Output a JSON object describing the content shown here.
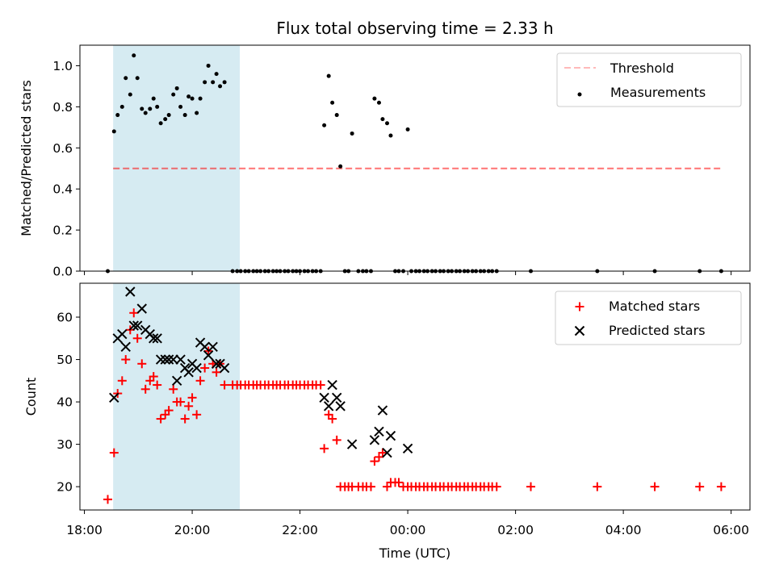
{
  "chart_data": [
    {
      "type": "scatter",
      "title": "Flux total observing time = 2.33 h",
      "xlabel": "",
      "ylabel": "Matched/Predicted stars",
      "ylim": [
        0.0,
        1.1
      ],
      "yticks": [
        "0.0",
        "0.2",
        "0.4",
        "0.6",
        "0.8",
        "1.0"
      ],
      "grid": false,
      "legend_position": "top-right",
      "shaded_time_range": [
        "18:32",
        "20:53"
      ],
      "threshold": {
        "name": "Threshold",
        "value": 0.5,
        "x_start": "18:32",
        "x_end": "05:51",
        "color": "#ff7f7f",
        "style": "dashed"
      },
      "series": [
        {
          "name": "Measurements",
          "color": "#000000",
          "marker": "dot",
          "points": [
            [
              "18:26",
              0.0
            ],
            [
              "18:33",
              0.68
            ],
            [
              "18:37",
              0.76
            ],
            [
              "18:42",
              0.8
            ],
            [
              "18:46",
              0.94
            ],
            [
              "18:51",
              0.86
            ],
            [
              "18:55",
              1.05
            ],
            [
              "18:59",
              0.94
            ],
            [
              "19:04",
              0.79
            ],
            [
              "19:08",
              0.77
            ],
            [
              "19:13",
              0.79
            ],
            [
              "19:17",
              0.84
            ],
            [
              "19:21",
              0.8
            ],
            [
              "19:25",
              0.72
            ],
            [
              "19:30",
              0.74
            ],
            [
              "19:34",
              0.76
            ],
            [
              "19:39",
              0.86
            ],
            [
              "19:43",
              0.89
            ],
            [
              "19:47",
              0.8
            ],
            [
              "19:52",
              0.76
            ],
            [
              "19:56",
              0.85
            ],
            [
              "20:00",
              0.84
            ],
            [
              "20:05",
              0.77
            ],
            [
              "20:09",
              0.84
            ],
            [
              "20:14",
              0.92
            ],
            [
              "20:18",
              1.0
            ],
            [
              "20:23",
              0.92
            ],
            [
              "20:27",
              0.96
            ],
            [
              "20:31",
              0.9
            ],
            [
              "20:36",
              0.92
            ],
            [
              "20:45",
              0.0
            ],
            [
              "20:50",
              0.0
            ],
            [
              "20:54",
              0.0
            ],
            [
              "20:59",
              0.0
            ],
            [
              "21:03",
              0.0
            ],
            [
              "21:08",
              0.0
            ],
            [
              "21:12",
              0.0
            ],
            [
              "21:16",
              0.0
            ],
            [
              "21:21",
              0.0
            ],
            [
              "21:25",
              0.0
            ],
            [
              "21:30",
              0.0
            ],
            [
              "21:34",
              0.0
            ],
            [
              "21:38",
              0.0
            ],
            [
              "21:43",
              0.0
            ],
            [
              "21:47",
              0.0
            ],
            [
              "21:52",
              0.0
            ],
            [
              "21:56",
              0.0
            ],
            [
              "22:00",
              0.0
            ],
            [
              "22:05",
              0.0
            ],
            [
              "22:09",
              0.0
            ],
            [
              "22:14",
              0.0
            ],
            [
              "22:18",
              0.0
            ],
            [
              "22:23",
              0.0
            ],
            [
              "22:27",
              0.71
            ],
            [
              "22:32",
              0.95
            ],
            [
              "22:36",
              0.82
            ],
            [
              "22:41",
              0.76
            ],
            [
              "22:45",
              0.51
            ],
            [
              "22:50",
              0.0
            ],
            [
              "22:54",
              0.0
            ],
            [
              "22:58",
              0.67
            ],
            [
              "23:05",
              0.0
            ],
            [
              "23:10",
              0.0
            ],
            [
              "23:14",
              0.0
            ],
            [
              "23:19",
              0.0
            ],
            [
              "23:23",
              0.84
            ],
            [
              "23:28",
              0.82
            ],
            [
              "23:32",
              0.74
            ],
            [
              "23:37",
              0.72
            ],
            [
              "23:41",
              0.66
            ],
            [
              "23:46",
              0.0
            ],
            [
              "23:50",
              0.0
            ],
            [
              "23:55",
              0.0
            ],
            [
              "00:00",
              0.69
            ],
            [
              "00:04",
              0.0
            ],
            [
              "00:09",
              0.0
            ],
            [
              "00:13",
              0.0
            ],
            [
              "00:18",
              0.0
            ],
            [
              "00:22",
              0.0
            ],
            [
              "00:27",
              0.0
            ],
            [
              "00:31",
              0.0
            ],
            [
              "00:36",
              0.0
            ],
            [
              "00:40",
              0.0
            ],
            [
              "00:45",
              0.0
            ],
            [
              "00:49",
              0.0
            ],
            [
              "00:54",
              0.0
            ],
            [
              "00:58",
              0.0
            ],
            [
              "01:03",
              0.0
            ],
            [
              "01:07",
              0.0
            ],
            [
              "01:12",
              0.0
            ],
            [
              "01:16",
              0.0
            ],
            [
              "01:21",
              0.0
            ],
            [
              "01:25",
              0.0
            ],
            [
              "01:30",
              0.0
            ],
            [
              "01:34",
              0.0
            ],
            [
              "01:39",
              0.0
            ],
            [
              "02:17",
              0.0
            ],
            [
              "03:31",
              0.0
            ],
            [
              "04:35",
              0.0
            ],
            [
              "05:25",
              0.0
            ],
            [
              "05:49",
              0.0
            ]
          ]
        }
      ]
    },
    {
      "type": "scatter",
      "title": "",
      "xlabel": "Time (UTC)",
      "ylabel": "Count",
      "ylim": [
        14.5,
        68
      ],
      "yticks": [
        "20",
        "30",
        "40",
        "50",
        "60"
      ],
      "xlim": [
        "17:55",
        "06:21"
      ],
      "xticks": [
        "18:00",
        "20:00",
        "22:00",
        "00:00",
        "02:00",
        "04:00",
        "06:00"
      ],
      "grid": false,
      "legend_position": "top-right",
      "shaded_time_range": [
        "18:32",
        "20:53"
      ],
      "series": [
        {
          "name": "Matched stars",
          "color": "#ff0000",
          "marker": "plus",
          "points": [
            [
              "18:26",
              17
            ],
            [
              "18:33",
              28
            ],
            [
              "18:37",
              42
            ],
            [
              "18:42",
              45
            ],
            [
              "18:46",
              50
            ],
            [
              "18:51",
              57
            ],
            [
              "18:55",
              61
            ],
            [
              "18:59",
              55
            ],
            [
              "19:04",
              49
            ],
            [
              "19:08",
              43
            ],
            [
              "19:13",
              45
            ],
            [
              "19:17",
              46
            ],
            [
              "19:21",
              44
            ],
            [
              "19:25",
              36
            ],
            [
              "19:30",
              37
            ],
            [
              "19:34",
              38
            ],
            [
              "19:39",
              43
            ],
            [
              "19:43",
              40
            ],
            [
              "19:47",
              40
            ],
            [
              "19:52",
              36
            ],
            [
              "19:56",
              39
            ],
            [
              "20:00",
              41
            ],
            [
              "20:05",
              37
            ],
            [
              "20:09",
              45
            ],
            [
              "20:14",
              48
            ],
            [
              "20:18",
              52
            ],
            [
              "20:23",
              49
            ],
            [
              "20:27",
              47
            ],
            [
              "20:31",
              49
            ],
            [
              "20:36",
              44
            ],
            [
              "20:45",
              44
            ],
            [
              "20:50",
              44
            ],
            [
              "20:54",
              44
            ],
            [
              "20:59",
              44
            ],
            [
              "21:03",
              44
            ],
            [
              "21:08",
              44
            ],
            [
              "21:12",
              44
            ],
            [
              "21:16",
              44
            ],
            [
              "21:21",
              44
            ],
            [
              "21:25",
              44
            ],
            [
              "21:30",
              44
            ],
            [
              "21:34",
              44
            ],
            [
              "21:38",
              44
            ],
            [
              "21:43",
              44
            ],
            [
              "21:47",
              44
            ],
            [
              "21:52",
              44
            ],
            [
              "21:56",
              44
            ],
            [
              "22:00",
              44
            ],
            [
              "22:05",
              44
            ],
            [
              "22:09",
              44
            ],
            [
              "22:14",
              44
            ],
            [
              "22:18",
              44
            ],
            [
              "22:23",
              44
            ],
            [
              "22:27",
              29
            ],
            [
              "22:32",
              37
            ],
            [
              "22:36",
              36
            ],
            [
              "22:41",
              31
            ],
            [
              "22:45",
              20
            ],
            [
              "22:50",
              20
            ],
            [
              "22:54",
              20
            ],
            [
              "22:58",
              20
            ],
            [
              "23:05",
              20
            ],
            [
              "23:10",
              20
            ],
            [
              "23:14",
              20
            ],
            [
              "23:19",
              20
            ],
            [
              "23:23",
              26
            ],
            [
              "23:28",
              27
            ],
            [
              "23:32",
              28
            ],
            [
              "23:37",
              20
            ],
            [
              "23:41",
              21
            ],
            [
              "23:46",
              21
            ],
            [
              "23:50",
              21
            ],
            [
              "23:55",
              20
            ],
            [
              "00:00",
              20
            ],
            [
              "00:04",
              20
            ],
            [
              "00:09",
              20
            ],
            [
              "00:13",
              20
            ],
            [
              "00:18",
              20
            ],
            [
              "00:22",
              20
            ],
            [
              "00:27",
              20
            ],
            [
              "00:31",
              20
            ],
            [
              "00:36",
              20
            ],
            [
              "00:40",
              20
            ],
            [
              "00:45",
              20
            ],
            [
              "00:49",
              20
            ],
            [
              "00:54",
              20
            ],
            [
              "00:58",
              20
            ],
            [
              "01:03",
              20
            ],
            [
              "01:07",
              20
            ],
            [
              "01:12",
              20
            ],
            [
              "01:16",
              20
            ],
            [
              "01:21",
              20
            ],
            [
              "01:25",
              20
            ],
            [
              "01:30",
              20
            ],
            [
              "01:34",
              20
            ],
            [
              "01:39",
              20
            ],
            [
              "02:17",
              20
            ],
            [
              "03:31",
              20
            ],
            [
              "04:35",
              20
            ],
            [
              "05:25",
              20
            ],
            [
              "05:49",
              20
            ]
          ]
        },
        {
          "name": "Predicted stars",
          "color": "#000000",
          "marker": "x",
          "points": [
            [
              "18:33",
              41
            ],
            [
              "18:37",
              55
            ],
            [
              "18:42",
              56
            ],
            [
              "18:46",
              53
            ],
            [
              "18:51",
              66
            ],
            [
              "18:55",
              58
            ],
            [
              "18:59",
              58
            ],
            [
              "19:04",
              62
            ],
            [
              "19:08",
              57
            ],
            [
              "19:13",
              56
            ],
            [
              "19:17",
              55
            ],
            [
              "19:21",
              55
            ],
            [
              "19:25",
              50
            ],
            [
              "19:30",
              50
            ],
            [
              "19:34",
              50
            ],
            [
              "19:39",
              50
            ],
            [
              "19:43",
              45
            ],
            [
              "19:47",
              50
            ],
            [
              "19:52",
              48
            ],
            [
              "19:56",
              47
            ],
            [
              "20:00",
              49
            ],
            [
              "20:05",
              48
            ],
            [
              "20:09",
              54
            ],
            [
              "20:14",
              53
            ],
            [
              "20:18",
              51
            ],
            [
              "20:23",
              53
            ],
            [
              "20:27",
              49
            ],
            [
              "20:31",
              49
            ],
            [
              "20:36",
              48
            ],
            [
              "22:27",
              41
            ],
            [
              "22:32",
              39
            ],
            [
              "22:36",
              44
            ],
            [
              "22:41",
              41
            ],
            [
              "22:45",
              39
            ],
            [
              "22:58",
              30
            ],
            [
              "23:23",
              31
            ],
            [
              "23:28",
              33
            ],
            [
              "23:32",
              38
            ],
            [
              "23:37",
              28
            ],
            [
              "23:41",
              32
            ],
            [
              "00:00",
              29
            ]
          ]
        }
      ]
    }
  ]
}
